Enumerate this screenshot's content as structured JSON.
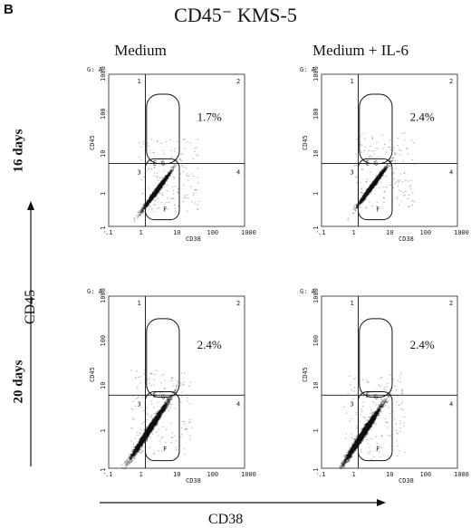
{
  "panel_letter": "B",
  "title": "CD45⁻ KMS-5",
  "columns": [
    "Medium",
    "Medium + IL-6"
  ],
  "rows": [
    "16 days",
    "20 days"
  ],
  "y_axis_title": "CD45",
  "x_axis_title": "CD38",
  "chart_data": [
    {
      "type": "scatter",
      "gate": "G: A",
      "xlabel": "CD38",
      "ylabel": "CD45",
      "xscale": "log",
      "yscale": "log",
      "xlim": [
        0.1,
        1000
      ],
      "ylim": [
        0.1,
        1000
      ],
      "xticks": [
        ".1",
        "1",
        "10",
        "100",
        "1000"
      ],
      "yticks": [
        ".1",
        "1",
        "10",
        "100",
        "1000"
      ],
      "quadrants": [
        "1",
        "2",
        "3",
        "4"
      ],
      "quadrant_lines": {
        "x": 1.2,
        "y": 4.5
      },
      "annotation": "1.7%",
      "gate_labels": [
        "G",
        "E",
        "F"
      ],
      "population": {
        "center_x": 2.5,
        "center_y": 0.9,
        "spread": "moderate",
        "density": "medium"
      }
    },
    {
      "type": "scatter",
      "gate": "G: A",
      "xlabel": "CD38",
      "ylabel": "CD45",
      "xscale": "log",
      "yscale": "log",
      "xlim": [
        0.1,
        1000
      ],
      "ylim": [
        0.1,
        1000
      ],
      "xticks": [
        ".1",
        "1",
        "10",
        "100",
        "1000"
      ],
      "yticks": [
        ".1",
        "1",
        "10",
        "100",
        "1000"
      ],
      "quadrants": [
        "1",
        "2",
        "3",
        "4"
      ],
      "quadrant_lines": {
        "x": 1.2,
        "y": 4.5
      },
      "annotation": "2.4%",
      "gate_labels": [
        "G",
        "E",
        "F"
      ],
      "population": {
        "center_x": 3,
        "center_y": 1.2,
        "spread": "moderate",
        "density": "medium"
      }
    },
    {
      "type": "scatter",
      "gate": "G: A",
      "xlabel": "CD38",
      "ylabel": "CD45",
      "xscale": "log",
      "yscale": "log",
      "xlim": [
        0.1,
        1000
      ],
      "ylim": [
        0.1,
        1000
      ],
      "xticks": [
        ".1",
        "1",
        "10",
        "100",
        "1000"
      ],
      "yticks": [
        ".1",
        "1",
        "10",
        "100",
        "1000"
      ],
      "quadrants": [
        "1",
        "2",
        "3",
        "4"
      ],
      "quadrant_lines": {
        "x": 1.2,
        "y": 5
      },
      "annotation": "2.4%",
      "gate_labels": [
        "G",
        "E",
        "F"
      ],
      "population": {
        "center_x": 1.5,
        "center_y": 0.8,
        "spread": "wide",
        "density": "high"
      }
    },
    {
      "type": "scatter",
      "gate": "G: A",
      "xlabel": "CD38",
      "ylabel": "CD45",
      "xscale": "log",
      "yscale": "log",
      "xlim": [
        0.1,
        1000
      ],
      "ylim": [
        0.1,
        1000
      ],
      "xticks": [
        ".1",
        "1",
        "10",
        "100",
        "1000"
      ],
      "yticks": [
        ".1",
        "1",
        "10",
        "100",
        "1000"
      ],
      "quadrants": [
        "1",
        "2",
        "3",
        "4"
      ],
      "quadrant_lines": {
        "x": 1.2,
        "y": 5
      },
      "annotation": "2.4%",
      "gate_labels": [
        "G",
        "E",
        "F"
      ],
      "population": {
        "center_x": 1.5,
        "center_y": 0.6,
        "spread": "wide",
        "density": "high"
      }
    }
  ]
}
